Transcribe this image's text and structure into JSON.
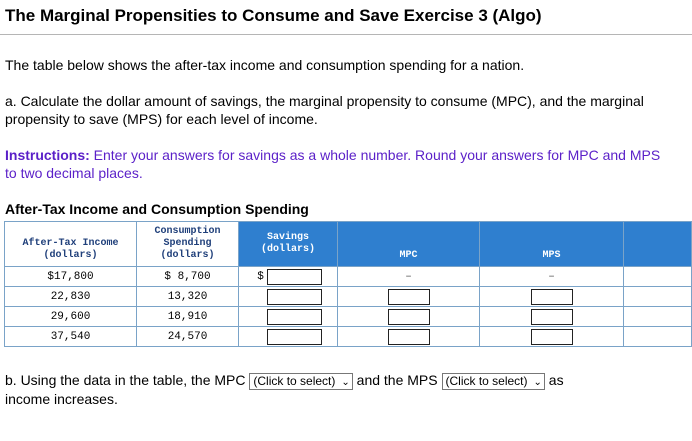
{
  "title": "The Marginal Propensities to Consume and Save Exercise 3 (Algo)",
  "intro": "The table below shows the after-tax income and consumption spending for a nation.",
  "part_a": "a. Calculate the dollar amount of savings, the marginal propensity to consume (MPC), and the marginal propensity to save (MPS) for each level of income.",
  "instructions_label": "Instructions:",
  "instructions_text": " Enter your answers for savings as a whole number. Round your answers for MPC and MPS to two decimal places.",
  "table_title": "After-Tax Income and Consumption Spending",
  "headers": {
    "income": "After-Tax Income (dollars)",
    "consumption": "Consumption Spending (dollars)",
    "savings": "Savings (dollars)",
    "mpc": "MPC",
    "mps": "MPS"
  },
  "rows": [
    {
      "income": "$17,800",
      "consumption": "$ 8,700",
      "savings_prefix": "$",
      "mpc": "–",
      "mps": "–"
    },
    {
      "income": "22,830",
      "consumption": "13,320",
      "savings_prefix": "",
      "mpc": "",
      "mps": ""
    },
    {
      "income": "29,600",
      "consumption": "18,910",
      "savings_prefix": "",
      "mpc": "",
      "mps": ""
    },
    {
      "income": "37,540",
      "consumption": "24,570",
      "savings_prefix": "",
      "mpc": "",
      "mps": ""
    }
  ],
  "part_b": {
    "prefix": "b. Using the data in the table, the MPC",
    "mpc_select": "(Click to select)",
    "middle": "and the MPS",
    "mps_select": "(Click to select)",
    "suffix": "as",
    "line2": "income increases."
  }
}
